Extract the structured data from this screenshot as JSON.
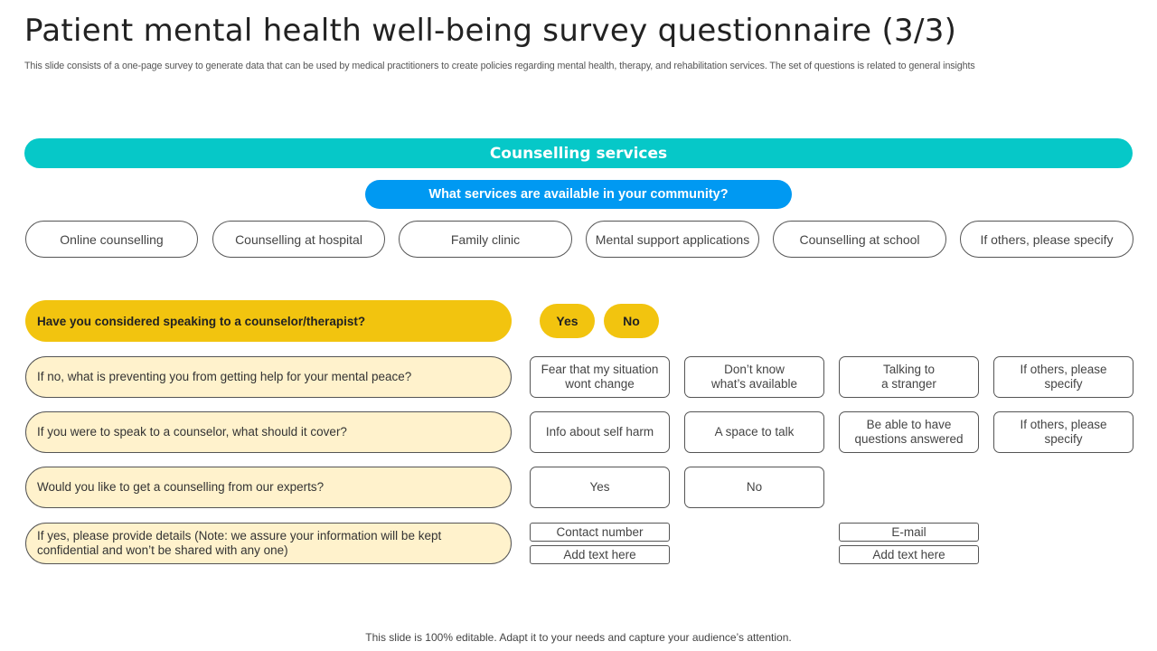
{
  "header": {
    "title": "Patient mental health well-being survey questionnaire (3/3)",
    "subtitle": "This slide consists of a one-page survey to generate data that can be used by medical practitioners to create policies regarding mental health, therapy, and rehabilitation services. The set of questions is related to general insights"
  },
  "section": {
    "title": "Counselling services",
    "question": "What services are available in your community?",
    "services": [
      "Online counselling",
      "Counselling at hospital",
      "Family clinic",
      "Mental support applications",
      "Counselling at school",
      "If others, please specify"
    ]
  },
  "counselor_question": {
    "text": "Have you considered speaking to a counselor/therapist?",
    "yes": "Yes",
    "no": "No"
  },
  "rows": [
    {
      "question": "If no, what is preventing  you from getting help for your mental peace?",
      "options": [
        "Fear that my situation\nwont change",
        "Don’t know\nwhat’s available",
        "Talking to\na stranger",
        "If others, please\nspecify"
      ]
    },
    {
      "question": "If you were to speak to a counselor, what should it cover?",
      "options": [
        "Info about self harm",
        "A space to talk",
        "Be able to have\nquestions answered",
        "If others, please\nspecify"
      ]
    },
    {
      "question": "Would you like to get a counselling from our experts?",
      "options": [
        "Yes",
        "No"
      ]
    },
    {
      "question": "If yes, please provide  details (Note:  we assure your information  will be kept confidential  and won’t be shared with any one)"
    }
  ],
  "details": {
    "contact_label": "Contact number",
    "contact_placeholder": "Add text here",
    "email_label": "E-mail",
    "email_placeholder": "Add text here"
  },
  "footer": {
    "text": "This slide is 100% editable. Adapt it to your needs and capture your audience’s attention."
  },
  "colors": {
    "teal": "#06C8C8",
    "blue": "#0099F2",
    "yellow": "#F2C40F",
    "light_yellow": "#FFF2CC"
  }
}
